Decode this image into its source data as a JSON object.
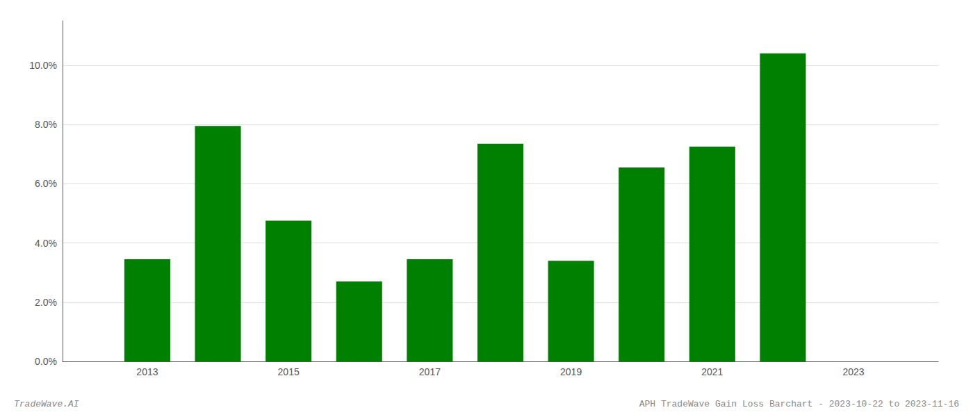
{
  "chart_data": {
    "type": "bar",
    "x": [
      2013,
      2014,
      2015,
      2016,
      2017,
      2018,
      2019,
      2020,
      2021,
      2022
    ],
    "values": [
      0.0345,
      0.0795,
      0.0475,
      0.027,
      0.0345,
      0.0735,
      0.034,
      0.0655,
      0.0725,
      0.104
    ],
    "color": "#008000",
    "xlim": [
      2011.8,
      2024.2
    ],
    "xticks": [
      2013,
      2015,
      2017,
      2019,
      2021,
      2023
    ],
    "ylim": [
      0,
      0.115
    ],
    "yticks": [
      {
        "value": 0.0,
        "label": "0.0%"
      },
      {
        "value": 0.02,
        "label": "2.0%"
      },
      {
        "value": 0.04,
        "label": "4.0%"
      },
      {
        "value": 0.06,
        "label": "6.0%"
      },
      {
        "value": 0.08,
        "label": "8.0%"
      },
      {
        "value": 0.1,
        "label": "10.0%"
      }
    ],
    "grid": true,
    "annotations": [
      "TradeWave.AI",
      "APH TradeWave Gain Loss Barchart - 2023-10-22 to 2023-11-16"
    ]
  }
}
